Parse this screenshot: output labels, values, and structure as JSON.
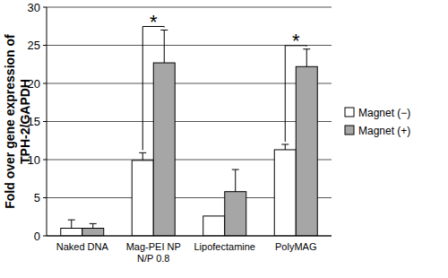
{
  "chart_data": {
    "type": "bar",
    "y_label": "Fold over gene expression of\nTPH-2/GAPDH",
    "categories": [
      "Naked DNA",
      "Mag-PEI NP\nN/P 0.8",
      "Lipofectamine",
      "PolyMAG"
    ],
    "series": [
      {
        "name": "Magnet (−)",
        "color": "#ffffff",
        "values": [
          1.0,
          9.9,
          2.6,
          11.3
        ],
        "errors": [
          1.1,
          1.0,
          null,
          0.7
        ]
      },
      {
        "name": "Magnet (+)",
        "color": "#a6a6a6",
        "values": [
          1.0,
          22.7,
          5.8,
          22.2
        ],
        "errors": [
          0.6,
          4.3,
          2.9,
          2.3
        ]
      }
    ],
    "annotations": [
      {
        "text": "*",
        "category": "Mag-PEI NP\nN/P 0.8"
      },
      {
        "text": "*",
        "category": "PolyMAG"
      }
    ],
    "ylim": [
      0,
      30
    ],
    "yticks": [
      0,
      5,
      10,
      15,
      20,
      25,
      30
    ],
    "grid": true,
    "legend": "right"
  }
}
